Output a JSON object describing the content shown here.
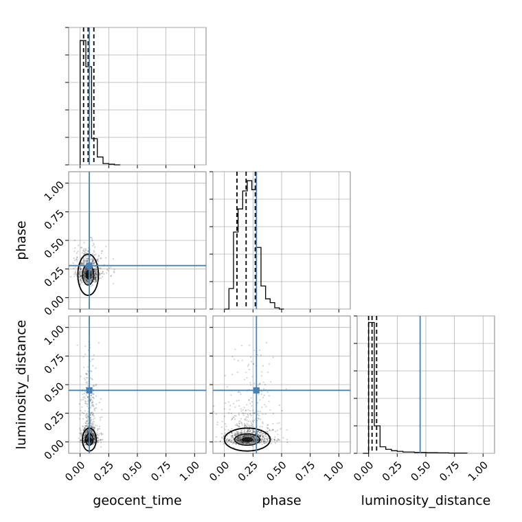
{
  "chart_data": {
    "type": "corner",
    "parameters": [
      "geocent_time",
      "phase",
      "luminosity_distance"
    ],
    "axis_range": [
      -0.1,
      1.1
    ],
    "tick_labels": [
      "0.00",
      "0.25",
      "0.50",
      "0.75",
      "1.00"
    ],
    "grid": true,
    "colors": {
      "truth": "#4682b4",
      "hist": "#000000",
      "quantile": "#000000",
      "grid": "#b0b0b0",
      "frame": "#808080",
      "scatter": "#000000"
    },
    "truths": {
      "geocent_time": 0.08,
      "phase": 0.28,
      "luminosity_distance": 0.45
    },
    "quantiles": {
      "geocent_time": [
        0.03,
        0.07,
        0.12
      ],
      "phase": [
        0.11,
        0.19,
        0.27
      ],
      "luminosity_distance": [
        0.0,
        0.03,
        0.07
      ]
    },
    "histograms": {
      "geocent_time": {
        "bin_edges": [
          0.0,
          0.05,
          0.1,
          0.15,
          0.2,
          0.25,
          0.3,
          0.35
        ],
        "counts": [
          0.95,
          0.75,
          0.2,
          0.06,
          0.01,
          0.005,
          0.0
        ],
        "ylim": [
          0,
          1.05
        ]
      },
      "phase": {
        "bin_edges": [
          0.0,
          0.04,
          0.08,
          0.12,
          0.16,
          0.2,
          0.24,
          0.28,
          0.32,
          0.36,
          0.4,
          0.44,
          0.48,
          0.52
        ],
        "counts": [
          0.0,
          0.16,
          0.6,
          0.78,
          0.92,
          1.0,
          0.93,
          0.48,
          0.18,
          0.08,
          0.05,
          0.01,
          0.0
        ],
        "ylim": [
          0,
          1.07
        ]
      },
      "luminosity_distance": {
        "bin_edges": [
          -0.05,
          0.0,
          0.05,
          0.1,
          0.15,
          0.2,
          0.25,
          0.3,
          0.4,
          0.5,
          0.6,
          0.7,
          0.86
        ],
        "counts": [
          0.0,
          1.0,
          0.21,
          0.05,
          0.03,
          0.02,
          0.015,
          0.01,
          0.007,
          0.005,
          0.004,
          0.002
        ],
        "ylim": [
          0,
          1.05
        ]
      }
    },
    "scatter": [
      {
        "x": "geocent_time",
        "y": "phase",
        "center": [
          0.07,
          0.2
        ],
        "spread": [
          0.045,
          0.09
        ],
        "tail": [
          0.3,
          0.55
        ],
        "n": 700
      },
      {
        "x": "geocent_time",
        "y": "luminosity_distance",
        "center": [
          0.08,
          0.02
        ],
        "spread": [
          0.03,
          0.05
        ],
        "tail": [
          0.2,
          0.95
        ],
        "n": 900
      },
      {
        "x": "phase",
        "y": "luminosity_distance",
        "center": [
          0.2,
          0.02
        ],
        "spread": [
          0.1,
          0.05
        ],
        "tail": [
          0.55,
          0.95
        ],
        "n": 900
      }
    ]
  }
}
